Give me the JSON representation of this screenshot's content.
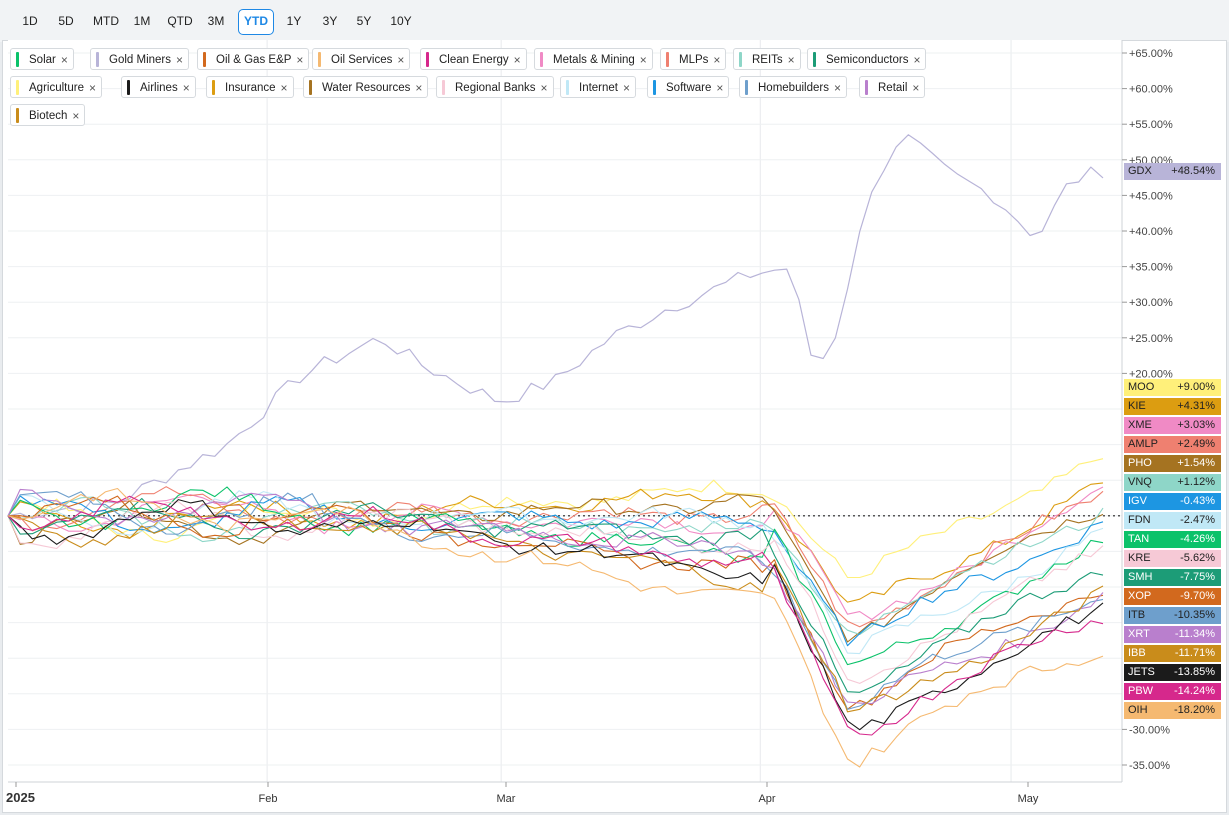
{
  "ranges": [
    {
      "label": "1D",
      "active": false
    },
    {
      "label": "5D",
      "active": false
    },
    {
      "label": "MTD",
      "active": false
    },
    {
      "label": "1M",
      "active": false
    },
    {
      "label": "QTD",
      "active": false
    },
    {
      "label": "3M",
      "active": false
    },
    {
      "label": "YTD",
      "active": true
    },
    {
      "label": "1Y",
      "active": false
    },
    {
      "label": "3Y",
      "active": false
    },
    {
      "label": "5Y",
      "active": false
    },
    {
      "label": "10Y",
      "active": false
    }
  ],
  "chips": [
    {
      "label": "Solar",
      "color": "#0bc26a"
    },
    {
      "label": "Gold Miners",
      "color": "#b8b4d8"
    },
    {
      "label": "Oil & Gas E&P",
      "color": "#d2691e"
    },
    {
      "label": "Oil Services",
      "color": "#f5b971"
    },
    {
      "label": "Clean Energy",
      "color": "#d6288c"
    },
    {
      "label": "Metals & Mining",
      "color": "#f08ac5"
    },
    {
      "label": "MLPs",
      "color": "#ef8070"
    },
    {
      "label": "REITs",
      "color": "#8ed6c8"
    },
    {
      "label": "Semiconductors",
      "color": "#1c9c77"
    },
    {
      "label": "Agriculture",
      "color": "#fff07a"
    },
    {
      "label": "Airlines",
      "color": "#1b1b1b"
    },
    {
      "label": "Insurance",
      "color": "#dc9d11"
    },
    {
      "label": "Water Resources",
      "color": "#a57321"
    },
    {
      "label": "Regional Banks",
      "color": "#f6c9d6"
    },
    {
      "label": "Internet",
      "color": "#c0e8f6"
    },
    {
      "label": "Software",
      "color": "#1d96e2"
    },
    {
      "label": "Homebuilders",
      "color": "#6e9fcc"
    },
    {
      "label": "Retail",
      "color": "#b97fcd"
    },
    {
      "label": "Biotech",
      "color": "#c98c1b"
    }
  ],
  "chart_data": {
    "type": "line",
    "x_ticks": [
      "2025",
      "Feb",
      "Mar",
      "Apr",
      "May"
    ],
    "y_ticks": [
      "+65.00%",
      "+60.00%",
      "+55.00%",
      "+50.00%",
      "+45.00%",
      "+40.00%",
      "+35.00%",
      "+30.00%",
      "+25.00%",
      "+20.00%",
      "-30.00%",
      "-35.00%"
    ],
    "y_tick_values": [
      65,
      60,
      55,
      50,
      45,
      40,
      35,
      30,
      25,
      20,
      -30,
      -35
    ],
    "ylim": [
      -37,
      67
    ],
    "x_range": [
      "2025-01-01",
      "2025-05-12"
    ],
    "baseline": 0,
    "series": [
      {
        "symbol": "GDX",
        "value": "+48.54%",
        "color": "#b8b4d8",
        "text": "#222",
        "final": 48.54
      },
      {
        "symbol": "MOO",
        "value": "+9.00%",
        "color": "#fff07a",
        "text": "#222",
        "final": 9.0
      },
      {
        "symbol": "KIE",
        "value": "+4.31%",
        "color": "#dc9d11",
        "text": "#222",
        "final": 4.31
      },
      {
        "symbol": "XME",
        "value": "+3.03%",
        "color": "#f08ac5",
        "text": "#222",
        "final": 3.03
      },
      {
        "symbol": "AMLP",
        "value": "+2.49%",
        "color": "#ef8070",
        "text": "#222",
        "final": 2.49
      },
      {
        "symbol": "PHO",
        "value": "+1.54%",
        "color": "#a57321",
        "text": "#fff",
        "final": 1.54
      },
      {
        "symbol": "VNQ",
        "value": "+1.12%",
        "color": "#8ed6c8",
        "text": "#222",
        "final": 1.12
      },
      {
        "symbol": "IGV",
        "value": "-0.43%",
        "color": "#1d96e2",
        "text": "#fff",
        "final": -0.43
      },
      {
        "symbol": "FDN",
        "value": "-2.47%",
        "color": "#c0e8f6",
        "text": "#222",
        "final": -2.47
      },
      {
        "symbol": "TAN",
        "value": "-4.26%",
        "color": "#0bc26a",
        "text": "#fff",
        "final": -4.26
      },
      {
        "symbol": "KRE",
        "value": "-5.62%",
        "color": "#f6c9d6",
        "text": "#222",
        "final": -5.62
      },
      {
        "symbol": "SMH",
        "value": "-7.75%",
        "color": "#1c9c77",
        "text": "#fff",
        "final": -7.75
      },
      {
        "symbol": "XOP",
        "value": "-9.70%",
        "color": "#d2691e",
        "text": "#fff",
        "final": -9.7
      },
      {
        "symbol": "ITB",
        "value": "-10.35%",
        "color": "#6e9fcc",
        "text": "#222",
        "final": -10.35
      },
      {
        "symbol": "XRT",
        "value": "-11.34%",
        "color": "#b97fcd",
        "text": "#fff",
        "final": -11.34
      },
      {
        "symbol": "IBB",
        "value": "-11.71%",
        "color": "#c98c1b",
        "text": "#fff",
        "final": -11.71
      },
      {
        "symbol": "JETS",
        "value": "-13.85%",
        "color": "#1b1b1b",
        "text": "#fff",
        "final": -13.85
      },
      {
        "symbol": "PBW",
        "value": "-14.24%",
        "color": "#d6288c",
        "text": "#fff",
        "final": -14.24
      },
      {
        "symbol": "OIH",
        "value": "-18.20%",
        "color": "#f5b971",
        "text": "#222",
        "final": -18.2
      }
    ]
  }
}
